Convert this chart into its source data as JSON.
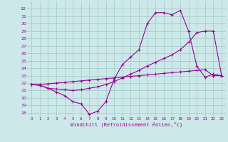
{
  "xlabel": "Windchill (Refroidissement éolien,°C)",
  "bg_color": "#cce8e8",
  "grid_color": "#a0c8c8",
  "line_color": "#990099",
  "xlim": [
    -0.5,
    23.5
  ],
  "ylim": [
    17.5,
    33.0
  ],
  "xticks": [
    0,
    1,
    2,
    3,
    4,
    5,
    6,
    7,
    8,
    9,
    10,
    11,
    12,
    13,
    14,
    15,
    16,
    17,
    18,
    19,
    20,
    21,
    22,
    23
  ],
  "yticks": [
    18,
    19,
    20,
    21,
    22,
    23,
    24,
    25,
    26,
    27,
    28,
    29,
    30,
    31,
    32
  ],
  "series1_x": [
    0,
    1,
    2,
    3,
    4,
    5,
    6,
    7,
    8,
    9,
    10,
    11,
    12,
    13,
    14,
    15,
    16,
    17,
    18,
    19,
    20,
    21,
    22,
    23
  ],
  "series1_y": [
    21.8,
    21.7,
    21.3,
    20.8,
    20.3,
    19.5,
    19.2,
    17.8,
    18.2,
    19.5,
    22.5,
    24.5,
    25.5,
    26.5,
    30.0,
    31.5,
    31.5,
    31.2,
    31.8,
    29.0,
    24.3,
    22.8,
    23.2,
    23.0
  ],
  "series2_x": [
    0,
    1,
    2,
    3,
    4,
    5,
    6,
    7,
    8,
    9,
    10,
    11,
    12,
    13,
    14,
    15,
    16,
    17,
    18,
    19,
    20,
    21,
    22,
    23
  ],
  "series2_y": [
    21.8,
    21.7,
    21.3,
    21.2,
    21.1,
    21.0,
    21.1,
    21.3,
    21.5,
    21.8,
    22.2,
    22.7,
    23.2,
    23.7,
    24.3,
    24.8,
    25.3,
    25.8,
    26.5,
    27.5,
    28.8,
    29.0,
    29.0,
    23.0
  ],
  "series3_x": [
    0,
    1,
    2,
    3,
    4,
    5,
    6,
    7,
    8,
    9,
    10,
    11,
    12,
    13,
    14,
    15,
    16,
    17,
    18,
    19,
    20,
    21,
    22,
    23
  ],
  "series3_y": [
    21.8,
    21.8,
    21.9,
    22.0,
    22.1,
    22.2,
    22.3,
    22.4,
    22.5,
    22.6,
    22.7,
    22.8,
    22.9,
    23.0,
    23.1,
    23.2,
    23.3,
    23.4,
    23.5,
    23.6,
    23.7,
    23.8,
    23.0,
    23.0
  ]
}
